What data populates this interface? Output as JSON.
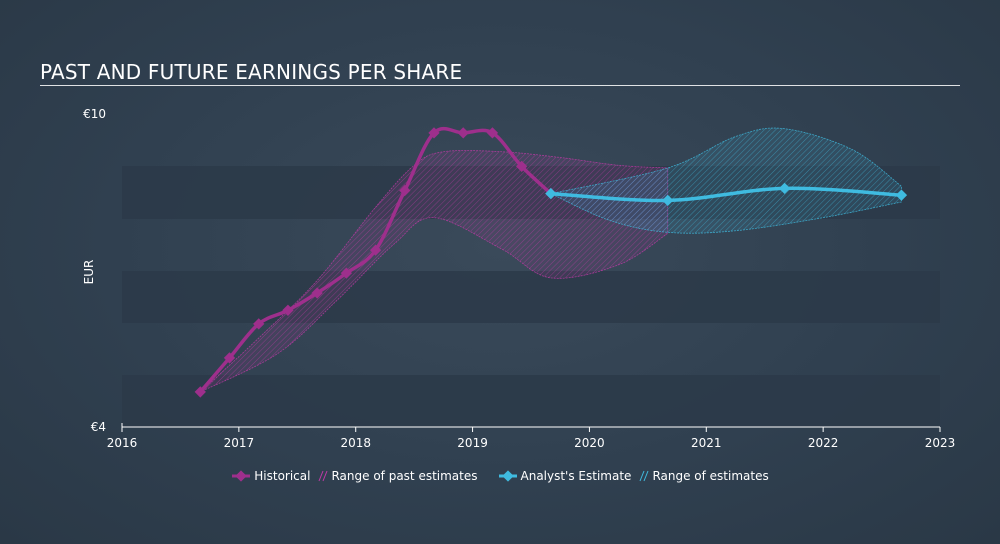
{
  "title": "PAST AND FUTURE EARNINGS PER SHARE",
  "colors": {
    "historical": "#9e2f8c",
    "historical_range": "#c03aa8",
    "estimate": "#3fbbe0",
    "estimate_range": "#3fbbe0",
    "band": "#2c3a49",
    "axis": "#ffffff"
  },
  "chart_data": {
    "type": "line",
    "ylabel": "EUR",
    "y_ticks": [
      "€10",
      "€4"
    ],
    "ylim": [
      4,
      10
    ],
    "x_ticks": [
      "2016",
      "2017",
      "2018",
      "2019",
      "2020",
      "2021",
      "2022",
      "2023"
    ],
    "xlim": [
      2016,
      2023
    ],
    "series": [
      {
        "name": "Historical",
        "points": [
          [
            2016.67,
            4.67
          ],
          [
            2016.92,
            5.32
          ],
          [
            2017.17,
            5.97
          ],
          [
            2017.42,
            6.23
          ],
          [
            2017.67,
            6.56
          ],
          [
            2017.92,
            6.94
          ],
          [
            2018.17,
            7.38
          ],
          [
            2018.42,
            8.52
          ],
          [
            2018.67,
            9.62
          ],
          [
            2018.92,
            9.62
          ],
          [
            2019.17,
            9.62
          ],
          [
            2019.42,
            8.98
          ],
          [
            2019.67,
            8.46
          ]
        ]
      },
      {
        "name": "Range of past estimates",
        "upper": [
          [
            2016.67,
            4.67
          ],
          [
            2017.17,
            5.7
          ],
          [
            2017.67,
            6.8
          ],
          [
            2018.17,
            8.2
          ],
          [
            2018.5,
            9.0
          ],
          [
            2018.75,
            9.26
          ],
          [
            2019.25,
            9.26
          ],
          [
            2019.75,
            9.15
          ],
          [
            2020.25,
            9.0
          ],
          [
            2020.67,
            8.95
          ]
        ],
        "lower": [
          [
            2020.67,
            7.7
          ],
          [
            2020.25,
            7.1
          ],
          [
            2019.67,
            6.85
          ],
          [
            2019.25,
            7.4
          ],
          [
            2018.67,
            8.0
          ],
          [
            2018.33,
            7.5
          ],
          [
            2017.83,
            6.4
          ],
          [
            2017.33,
            5.4
          ],
          [
            2016.67,
            4.67
          ]
        ]
      },
      {
        "name": "Analyst's Estimate",
        "points": [
          [
            2019.67,
            8.46
          ],
          [
            2020.67,
            8.33
          ],
          [
            2021.67,
            8.56
          ],
          [
            2022.67,
            8.43
          ]
        ]
      },
      {
        "name": "Range of estimates",
        "upper": [
          [
            2019.67,
            8.46
          ],
          [
            2020.67,
            8.95
          ],
          [
            2021.25,
            9.55
          ],
          [
            2021.67,
            9.7
          ],
          [
            2022.25,
            9.3
          ],
          [
            2022.67,
            8.6
          ]
        ],
        "lower": [
          [
            2022.67,
            8.3
          ],
          [
            2022.0,
            8.0
          ],
          [
            2021.25,
            7.75
          ],
          [
            2020.67,
            7.72
          ],
          [
            2020.17,
            7.95
          ],
          [
            2019.67,
            8.46
          ]
        ]
      }
    ]
  },
  "legend": {
    "historical": "Historical",
    "past_range": "Range of past estimates",
    "estimate": "Analyst's Estimate",
    "estimate_range": "Range of estimates"
  }
}
